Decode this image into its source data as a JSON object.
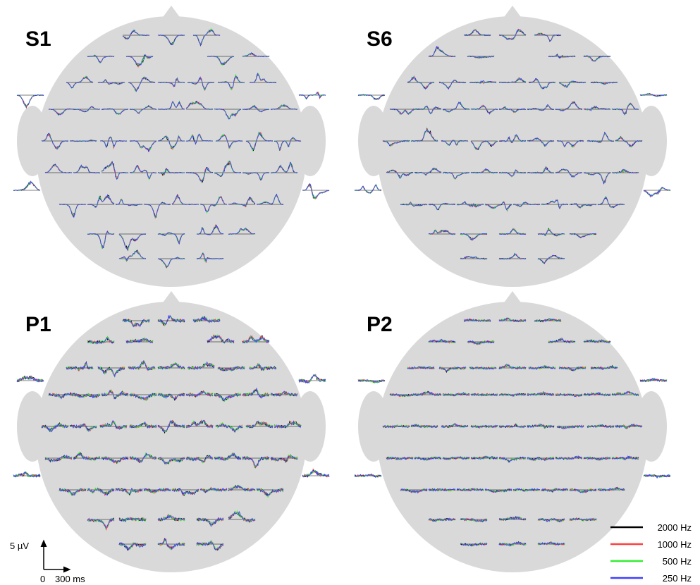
{
  "panels": [
    {
      "label": "S1"
    },
    {
      "label": "S6"
    },
    {
      "label": "P1"
    },
    {
      "label": "P2"
    }
  ],
  "legend": [
    {
      "name": "2000 Hz",
      "color": "#000000"
    },
    {
      "name": "1000 Hz",
      "color": "#ff4040"
    },
    {
      "name": "500 Hz",
      "color": "#33ee33"
    },
    {
      "name": "250 Hz",
      "color": "#4040ff"
    }
  ],
  "scale_bar": {
    "amplitude": "5 µV",
    "origin": "0",
    "time": "300 ms"
  }
}
